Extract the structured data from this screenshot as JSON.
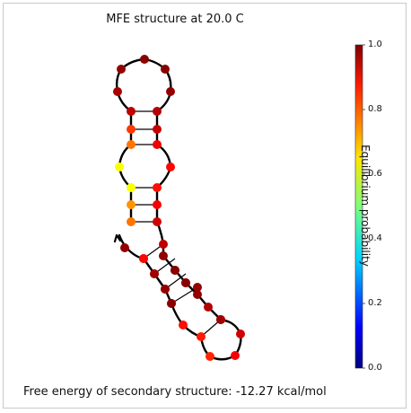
{
  "title": "MFE structure at 20.0 C",
  "footer": "Free energy of secondary structure: -12.27 kcal/mol",
  "colorbar": {
    "label": "Equilibrium probability",
    "ticks": [
      "1.0",
      "0.8",
      "0.6",
      "0.4",
      "0.2",
      "0.0"
    ]
  },
  "structure": {
    "nucleotide_probabilities": [
      0.98,
      0.85,
      0.83,
      0.84,
      0.85,
      0.86,
      0.85,
      0.84,
      0.88,
      0.92,
      0.93,
      0.95,
      0.98,
      0.99,
      0.99,
      0.98,
      0.94,
      0.92,
      0.88,
      0.86,
      0.87,
      0.89,
      0.93,
      0.95,
      0.98,
      0.99,
      0.99,
      0.98,
      0.96,
      0.94,
      0.82,
      0.76,
      0.62,
      0.62,
      0.73,
      0.76,
      0.87,
      0.97,
      0.98,
      0.99,
      0.99,
      0.99,
      0.98,
      0.97,
      0.97,
      0.97,
      0.97,
      0.95,
      0.92,
      0.94,
      0.95,
      0.97,
      0.98,
      0.99
    ]
  }
}
